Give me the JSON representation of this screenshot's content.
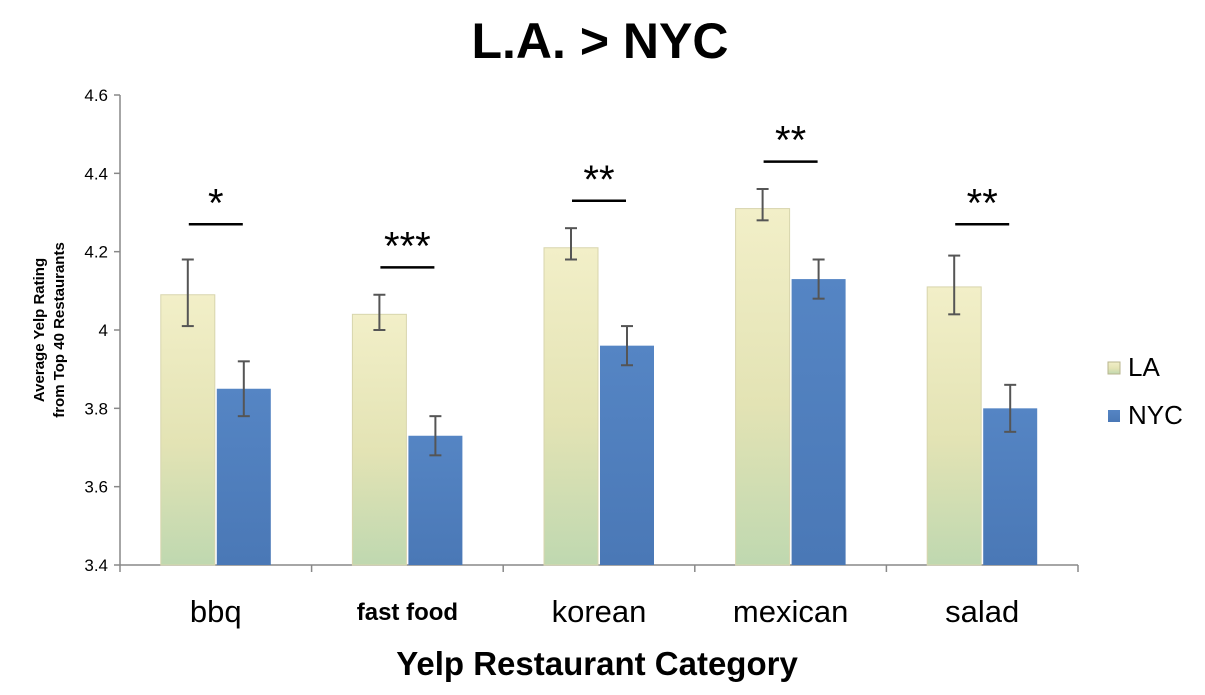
{
  "chart_data": {
    "type": "bar",
    "title": "L.A. > NYC",
    "xlabel": "Yelp Restaurant Category",
    "ylabel_lines": [
      "Average Yelp Rating",
      "from Top 40 Restaurants"
    ],
    "categories": [
      "bbq",
      "fast food",
      "korean",
      "mexican",
      "salad"
    ],
    "ylim": [
      3.4,
      4.6
    ],
    "yticks": [
      {
        "value": 3.4,
        "label": "3.4"
      },
      {
        "value": 3.6,
        "label": "3.6"
      },
      {
        "value": 3.8,
        "label": "3.8"
      },
      {
        "value": 4.0,
        "label": "4"
      },
      {
        "value": 4.2,
        "label": "4.2"
      },
      {
        "value": 4.4,
        "label": "4.4"
      },
      {
        "value": 4.6,
        "label": "4.6"
      }
    ],
    "series": [
      {
        "name": "LA",
        "values": [
          4.09,
          4.04,
          4.21,
          4.31,
          4.11
        ],
        "err_low": [
          4.01,
          4.0,
          4.18,
          4.28,
          4.04
        ],
        "err_high": [
          4.18,
          4.09,
          4.26,
          4.36,
          4.19
        ],
        "color": "#e6e2b6"
      },
      {
        "name": "NYC",
        "values": [
          3.85,
          3.73,
          3.96,
          4.13,
          3.8
        ],
        "err_low": [
          3.78,
          3.68,
          3.91,
          4.08,
          3.74
        ],
        "err_high": [
          3.92,
          3.78,
          4.01,
          4.18,
          3.86
        ],
        "color": "#4f7fbf"
      }
    ],
    "significance": [
      {
        "category": "bbq",
        "stars": "*",
        "level": 4.27
      },
      {
        "category": "fast food",
        "stars": "***",
        "level": 4.16
      },
      {
        "category": "korean",
        "stars": "**",
        "level": 4.33
      },
      {
        "category": "mexican",
        "stars": "**",
        "level": 4.43
      },
      {
        "category": "salad",
        "stars": "**",
        "level": 4.27
      }
    ],
    "legend": {
      "placement": "right",
      "entries": [
        "LA",
        "NYC"
      ]
    },
    "grid": false
  }
}
